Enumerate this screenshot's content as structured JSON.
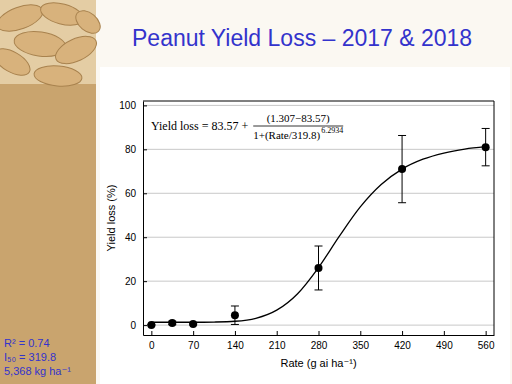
{
  "chart_data": {
    "type": "scatter",
    "title": "Peanut Yield Loss – 2017 & 2018",
    "x_label": "Rate (g ai ha⁻¹)",
    "y_label": "Yield loss (%)",
    "annotation": {
      "lhs": "Yield loss = 83.57 +",
      "numerator": "(1.307−83.57)",
      "denominator": "1+(Rate/319.8)",
      "exponent": "6.2934"
    },
    "xlim": [
      -14,
      574
    ],
    "ylim": [
      -4.5,
      102
    ],
    "xticks": [
      0,
      70,
      140,
      210,
      280,
      350,
      420,
      490,
      560
    ],
    "yticks": [
      0,
      20,
      40,
      60,
      80,
      100
    ],
    "grid": true,
    "series": [
      {
        "type": "scatter",
        "color": "#000000",
        "marker": "circle",
        "x": [
          0,
          35,
          70,
          140,
          280,
          420,
          560
        ],
        "values": [
          0,
          1,
          0.5,
          4.5,
          26,
          71,
          81
        ],
        "errors": [
          0.3,
          0.8,
          0.4,
          4.2,
          10,
          15.3,
          8.5
        ]
      },
      {
        "type": "line",
        "color": "#000000",
        "line_style": "solid",
        "x": [
          0,
          35,
          70,
          105,
          140,
          175,
          210,
          245,
          280,
          315,
          350,
          385,
          420,
          455,
          490,
          525,
          560
        ],
        "values": [
          1.3,
          1.3,
          1.3,
          1.4,
          1.75,
          3.1,
          6.8,
          14.3,
          26.2,
          40.5,
          53.8,
          64,
          71,
          75.5,
          78.3,
          80.1,
          81.2
        ]
      }
    ]
  },
  "sidebar": [
    "R² = 0.74",
    "I₅₀ = 319.8",
    "5,368 kg ha⁻¹"
  ]
}
